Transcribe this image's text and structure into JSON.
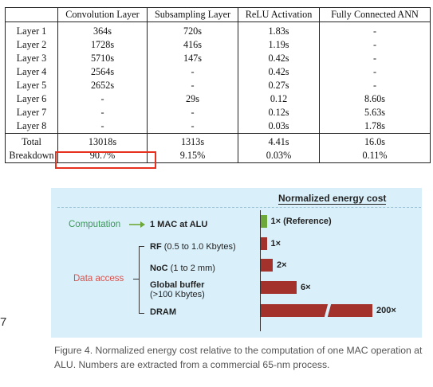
{
  "table": {
    "headers": [
      "",
      "Convolution Layer",
      "Subsampling Layer",
      "ReLU Activation",
      "Fully Connected ANN"
    ],
    "rows": [
      [
        "Layer 1",
        "364s",
        "720s",
        "1.83s",
        "-"
      ],
      [
        "Layer 2",
        "1728s",
        "416s",
        "1.19s",
        "-"
      ],
      [
        "Layer 3",
        "5710s",
        "147s",
        "0.42s",
        "-"
      ],
      [
        "Layer 4",
        "2564s",
        "-",
        "0.42s",
        "-"
      ],
      [
        "Layer 5",
        "2652s",
        "-",
        "0.27s",
        "-"
      ],
      [
        "Layer 6",
        "-",
        "29s",
        "0.12",
        "8.60s"
      ],
      [
        "Layer 7",
        "-",
        "-",
        "0.12s",
        "5.63s"
      ],
      [
        "Layer 8",
        "-",
        "-",
        "0.03s",
        "1.78s"
      ]
    ],
    "summary": [
      [
        "Total",
        "13018s",
        "1313s",
        "4.41s",
        "16.0s"
      ],
      [
        "Breakdown",
        "90.7%",
        "9.15%",
        "0.03%",
        "0.11%"
      ]
    ]
  },
  "figure": {
    "title": "Normalized energy cost",
    "computation_label": "Computation",
    "data_access_label": "Data access",
    "items": [
      {
        "bold": "1 MAC at ALU",
        "rest": "",
        "sub": "",
        "value_label": "1× (Reference)",
        "value": 1
      },
      {
        "bold": "RF",
        "rest": " (0.5 to 1.0 Kbytes)",
        "sub": "",
        "value_label": "1×",
        "value": 1
      },
      {
        "bold": "NoC",
        "rest": " (1 to 2 mm)",
        "sub": "",
        "value_label": "2×",
        "value": 2
      },
      {
        "bold": "Global buffer",
        "rest": "",
        "sub": "(>100 Kbytes)",
        "value_label": "6×",
        "value": 6
      },
      {
        "bold": "DRAM",
        "rest": "",
        "sub": "",
        "value_label": "200×",
        "value": 200
      }
    ],
    "colors": {
      "computation": "#6ea83a",
      "data_access": "#a3322c",
      "computation_text": "#3a9a55",
      "data_access_text": "#d9504a"
    }
  },
  "caption": "Figure 4. Normalized energy cost relative to the computation of one MAC operation at ALU. Numbers are extracted from a commercial 65-nm process.",
  "margin_mark": "7"
}
